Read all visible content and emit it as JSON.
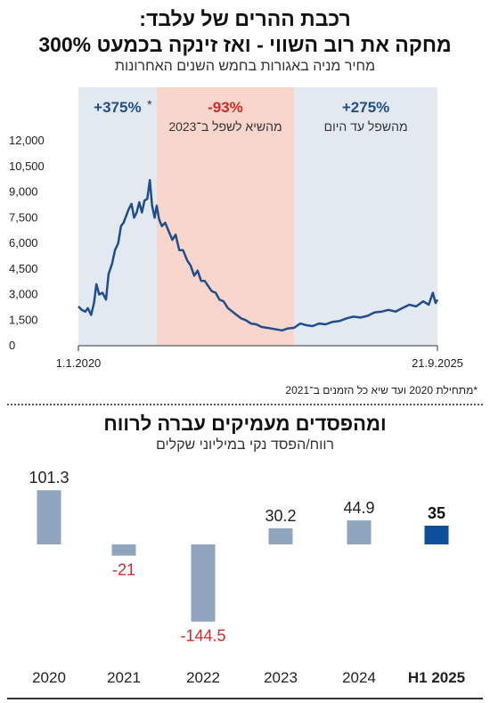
{
  "header": {
    "title_line1": "רכבת ההרים של עלבד:",
    "title_line2": "מחקה את רוב השווי - ואז זינקה בכמעט 300%",
    "subtitle": "מחיר מניה באגורות בחמש השנים האחרונות"
  },
  "footnote": "*מתחילת 2020 ועד שיא כל הזמנים ב־2021",
  "second_header": {
    "title": "ומהפסדים מעמיקים עברה לרווח",
    "subtitle": "רווח/הפסד נקי במיליוני שקלים"
  },
  "colors": {
    "line": "#1f4e8c",
    "band_blue": "#e3e9f1",
    "band_red": "#f8d6cc",
    "positive_text": "#1f4e8c",
    "negative_text": "#d42828",
    "bar": "#8fa5bd",
    "bar_highlight": "#0d4f9a"
  },
  "chart_data": [
    {
      "type": "line",
      "title": "",
      "xlabel": "",
      "ylabel": "",
      "x_range": [
        "2020-01-01",
        "2025-09-21"
      ],
      "x_tick_labels": [
        "1.1.2020",
        "21.9.2025"
      ],
      "ylim": [
        0,
        12000
      ],
      "y_ticks": [
        0,
        1500,
        3000,
        4500,
        6000,
        7500,
        9000,
        10500,
        12000
      ],
      "y_tick_labels": [
        "0",
        "1,500",
        "3,000",
        "4,500",
        "6,000",
        "7,500",
        "9,000",
        "10,500",
        "12,000"
      ],
      "periods": [
        {
          "start": "2020-01-01",
          "end": "2021-03-31",
          "label": "+375%",
          "marker": "*",
          "description": "",
          "color": "blue"
        },
        {
          "start": "2021-03-31",
          "end": "2023-06-10",
          "label": "-93%",
          "description": "מהשיא לשפל ב־2023",
          "color": "red"
        },
        {
          "start": "2023-06-10",
          "end": "2025-09-21",
          "label": "+275%",
          "description": "מהשפל עד היום",
          "color": "blue"
        }
      ],
      "series": [
        {
          "x": [
            "2020-01-01",
            "2020-01-20",
            "2020-02-10",
            "2020-02-25",
            "2020-03-15",
            "2020-04-01",
            "2020-04-15",
            "2020-05-01",
            "2020-05-20",
            "2020-06-10",
            "2020-06-25",
            "2020-07-15",
            "2020-08-01",
            "2020-08-20",
            "2020-09-05",
            "2020-09-20",
            "2020-10-05",
            "2020-10-20",
            "2020-11-05",
            "2020-11-20",
            "2020-12-05",
            "2020-12-20",
            "2021-01-05",
            "2021-01-20",
            "2021-02-05",
            "2021-02-20",
            "2021-03-05",
            "2021-03-20",
            "2021-04-01",
            "2021-04-15",
            "2021-05-01",
            "2021-05-20",
            "2021-06-10",
            "2021-07-01",
            "2021-07-20",
            "2021-08-10",
            "2021-09-01",
            "2021-09-25",
            "2021-10-15",
            "2021-11-05",
            "2021-11-25",
            "2021-12-15",
            "2022-01-05",
            "2022-01-25",
            "2022-02-15",
            "2022-03-10",
            "2022-04-01",
            "2022-04-25",
            "2022-05-20",
            "2022-06-15",
            "2022-07-10",
            "2022-08-05",
            "2022-09-01",
            "2022-10-01",
            "2022-11-01",
            "2022-12-01",
            "2023-01-01",
            "2023-02-01",
            "2023-03-01",
            "2023-04-01",
            "2023-05-01",
            "2023-06-10",
            "2023-07-15",
            "2023-08-20",
            "2023-09-25",
            "2023-11-01",
            "2023-12-10",
            "2024-01-20",
            "2024-03-01",
            "2024-04-10",
            "2024-05-20",
            "2024-06-30",
            "2024-08-10",
            "2024-09-20",
            "2024-11-01",
            "2024-12-10",
            "2025-01-20",
            "2025-03-01",
            "2025-04-10",
            "2025-05-20",
            "2025-06-30",
            "2025-08-01",
            "2025-08-25",
            "2025-09-10",
            "2025-09-21"
          ],
          "y": [
            2300,
            2100,
            2000,
            2200,
            1800,
            2500,
            3600,
            3000,
            3100,
            2700,
            4200,
            4800,
            5600,
            6000,
            7000,
            7200,
            7600,
            8000,
            8300,
            7500,
            7800,
            8400,
            7800,
            8500,
            8600,
            9700,
            8200,
            7500,
            8200,
            7400,
            7000,
            7200,
            6700,
            6200,
            6500,
            5600,
            5600,
            5000,
            4700,
            4100,
            4400,
            3800,
            3800,
            3500,
            3200,
            3100,
            2700,
            2600,
            2200,
            2000,
            1800,
            1600,
            1500,
            1300,
            1250,
            1100,
            1050,
            1000,
            950,
            900,
            1000,
            1050,
            1300,
            1200,
            1150,
            1300,
            1250,
            1400,
            1450,
            1600,
            1700,
            1650,
            1750,
            1950,
            2000,
            2100,
            2000,
            2200,
            2400,
            2300,
            2600,
            2400,
            3100,
            2500,
            2700
          ]
        }
      ]
    },
    {
      "type": "bar",
      "title": "",
      "xlabel": "",
      "ylabel": "",
      "categories": [
        "2020",
        "2021",
        "2022",
        "2023",
        "2024",
        "H1 2025"
      ],
      "values": [
        101.3,
        -21,
        -144.5,
        30.2,
        44.9,
        35
      ],
      "value_labels": [
        "101.3",
        "-21",
        "-144.5",
        "30.2",
        "44.9",
        "35"
      ],
      "highlight_index": 5
    }
  ]
}
